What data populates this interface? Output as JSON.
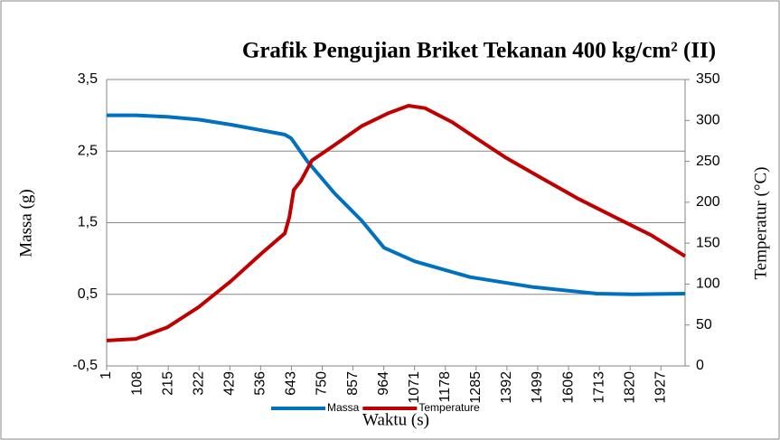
{
  "chart_data": {
    "type": "line",
    "title": "Grafik Pengujian Briket Tekanan 400 kg/cm² (II)",
    "xlabel": "Waktu (s)",
    "ylabel": "Massa (g)",
    "y2label": "Temperatur (°C)",
    "xlim": [
      1,
      2011
    ],
    "xticks": [
      1,
      108,
      215,
      322,
      429,
      536,
      643,
      750,
      857,
      964,
      1071,
      1178,
      1285,
      1392,
      1499,
      1606,
      1713,
      1820,
      1927
    ],
    "ylim": [
      -0.5,
      3.5
    ],
    "yticks": [
      {
        "value": -0.5,
        "label": "-0,5"
      },
      {
        "value": 0.5,
        "label": "0,5"
      },
      {
        "value": 1.5,
        "label": "1,5"
      },
      {
        "value": 2.5,
        "label": "2,5"
      },
      {
        "value": 3.5,
        "label": "3,5"
      }
    ],
    "y2lim": [
      0,
      350
    ],
    "y2ticks": [
      0,
      50,
      100,
      150,
      200,
      250,
      300,
      350
    ],
    "grid": true,
    "legend": "bottom",
    "series": [
      {
        "name": "Massa",
        "color": "#0070c0",
        "x": [
          1,
          102,
          211,
          321,
          431,
          541,
          620,
          642,
          698,
          793,
          887,
          965,
          1072,
          1264,
          1484,
          1704,
          1829,
          2011
        ],
        "values": [
          3.0,
          3.0,
          2.98,
          2.94,
          2.87,
          2.79,
          2.73,
          2.68,
          2.36,
          1.91,
          1.53,
          1.15,
          0.96,
          0.74,
          0.6,
          0.51,
          0.5,
          0.51
        ]
      },
      {
        "name": "Temperature",
        "color": "#c00000",
        "axis": "y2",
        "x": [
          1,
          102,
          211,
          321,
          431,
          541,
          620,
          636,
          651,
          676,
          714,
          793,
          887,
          981,
          1050,
          1107,
          1201,
          1295,
          1390,
          1515,
          1641,
          1766,
          1892,
          2011
        ],
        "values": [
          31,
          33,
          47,
          72,
          103,
          138,
          162,
          182,
          215,
          226,
          251,
          270,
          293,
          309,
          318,
          315,
          298,
          276,
          254,
          229,
          204,
          182,
          160,
          134
        ]
      }
    ]
  }
}
